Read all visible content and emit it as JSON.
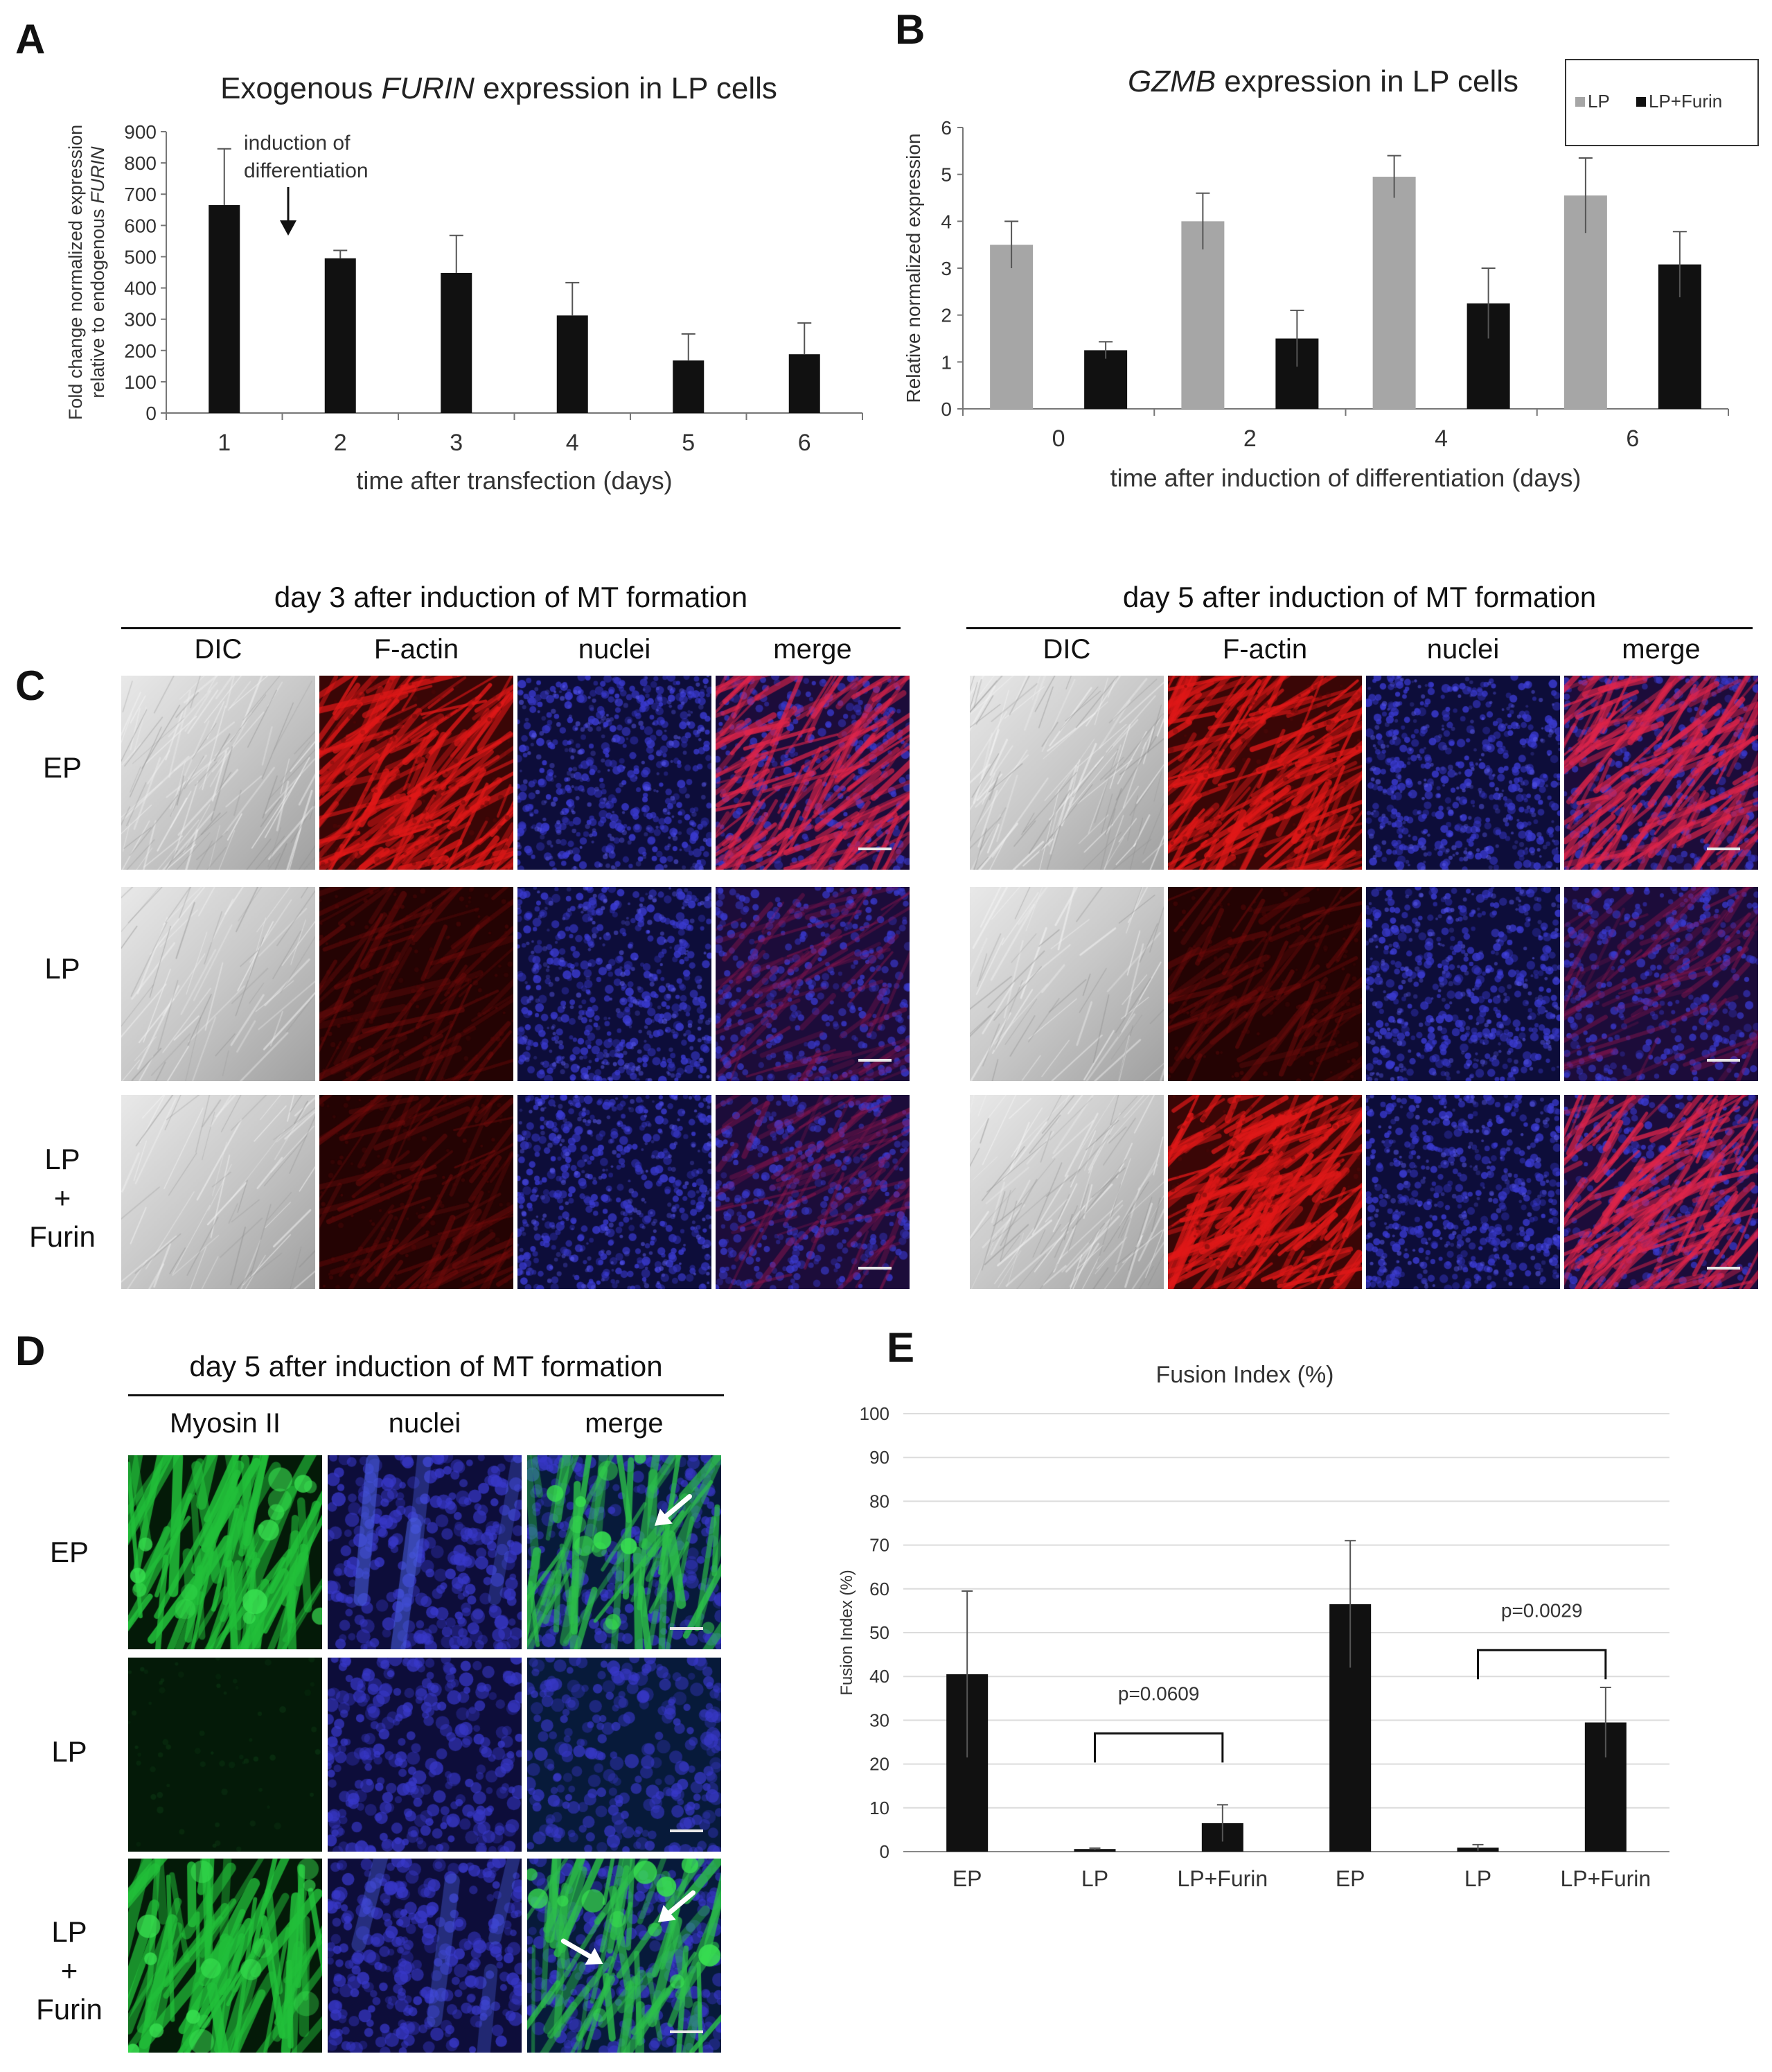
{
  "panels": {
    "A": {
      "letter": "A"
    },
    "B": {
      "letter": "B"
    },
    "C": {
      "letter": "C"
    },
    "D": {
      "letter": "D"
    },
    "E": {
      "letter": "E"
    }
  },
  "chart_data": [
    {
      "id": "A",
      "type": "bar",
      "title_prefix": "Exogenous ",
      "title_italic": "FURIN",
      "title_suffix": " expression in LP cells",
      "ylabel_line1": "Fold change normalized expression",
      "ylabel_line2_prefix": "relative to endogenous ",
      "ylabel_line2_italic": "FURIN",
      "xlabel": "time after transfection (days)",
      "categories": [
        "1",
        "2",
        "3",
        "4",
        "5",
        "6"
      ],
      "values": [
        665,
        495,
        448,
        312,
        168,
        188
      ],
      "errors": [
        180,
        25,
        120,
        105,
        85,
        100
      ],
      "yticks": [
        0,
        100,
        200,
        300,
        400,
        500,
        600,
        700,
        800,
        900
      ],
      "ylim": [
        0,
        900
      ],
      "annotation_line1": "induction of",
      "annotation_line2": "differentiation",
      "color": "#111111"
    },
    {
      "id": "B",
      "type": "bar",
      "title_italic": "GZMB",
      "title_suffix": " expression in LP cells",
      "ylabel": "Relative normalized expression",
      "xlabel": "time after induction of differentiation (days)",
      "categories": [
        "0",
        "2",
        "4",
        "6"
      ],
      "series": [
        {
          "name": "LP",
          "values": [
            3.5,
            4.0,
            4.95,
            4.55
          ],
          "errors": [
            0.5,
            0.6,
            0.45,
            0.8
          ],
          "color": "#a6a6a6"
        },
        {
          "name": "LP+Furin",
          "values": [
            1.25,
            1.5,
            2.25,
            3.08
          ],
          "errors": [
            0.18,
            0.6,
            0.75,
            0.7
          ],
          "color": "#111111"
        }
      ],
      "yticks": [
        0,
        1,
        2,
        3,
        4,
        5,
        6
      ],
      "ylim": [
        0,
        6
      ],
      "legend_position": "top-right"
    },
    {
      "id": "E",
      "type": "bar",
      "title": "Fusion Index (%)",
      "ylabel": "Fusion Index (%)",
      "categories": [
        "EP",
        "LP",
        "LP+Furin",
        "EP",
        "LP",
        "LP+Furin"
      ],
      "values": [
        40.5,
        0.6,
        6.5,
        56.5,
        0.9,
        29.5
      ],
      "errors": [
        19,
        0.2,
        4.2,
        14.5,
        0.7,
        8
      ],
      "yticks": [
        0,
        10,
        20,
        30,
        40,
        50,
        60,
        70,
        80,
        90,
        100
      ],
      "ylim": [
        0,
        100
      ],
      "grid": true,
      "brackets": [
        {
          "from": 1,
          "to": 2,
          "level": 27,
          "label": "p=0.0609"
        },
        {
          "from": 4,
          "to": 5,
          "level": 46,
          "label": "p=0.0029"
        }
      ],
      "color": "#111111"
    }
  ],
  "panel_c": {
    "left_header": "day 3 after induction of MT formation",
    "right_header": "day 5 after induction of MT formation",
    "columns": [
      "DIC",
      "F-actin",
      "nuclei",
      "merge"
    ],
    "rows": [
      "EP",
      "LP",
      "LP\n+\nFurin"
    ]
  },
  "panel_d": {
    "header": "day 5 after induction of MT formation",
    "columns": [
      "Myosin II",
      "nuclei",
      "merge"
    ],
    "rows": [
      "EP",
      "LP",
      "LP\n+\nFurin"
    ]
  }
}
